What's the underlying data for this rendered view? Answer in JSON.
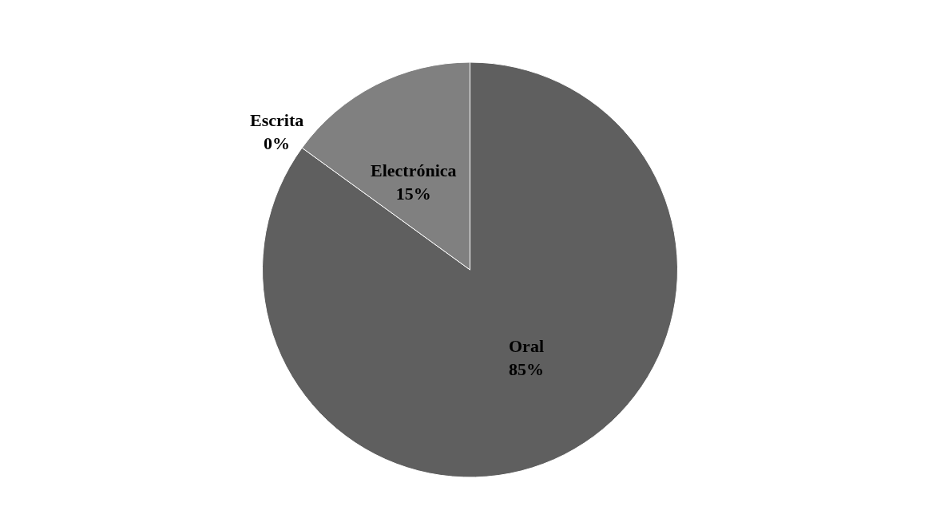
{
  "chart_data": {
    "type": "pie",
    "categories": [
      "Oral",
      "Escrita",
      "Electrónica"
    ],
    "values": [
      85,
      0,
      15
    ],
    "colors": [
      "#5f5f5f",
      "#4a4a4a",
      "#808080"
    ],
    "value_labels": [
      "85%",
      "0%",
      "15%"
    ],
    "legend": false
  }
}
